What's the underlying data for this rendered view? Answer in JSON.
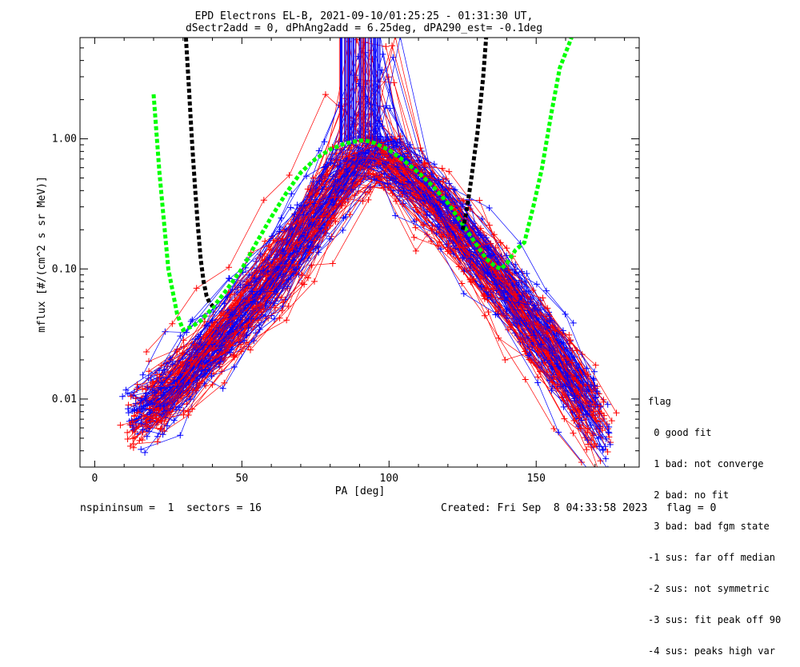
{
  "chart_data": {
    "type": "line",
    "title": "EPD Electrons EL-B, 2021-09-10/01:25:25 - 01:31:30 UT,",
    "subtitle": "dSectr2add = 0, dPhAng2add = 6.25deg, dPA290_est=  -0.1deg",
    "xlabel": "PA [deg]",
    "ylabel": "mflux [#/(cm^2 s sr MeV)]",
    "xlim": [
      -5,
      185
    ],
    "ylim": [
      0.003,
      6
    ],
    "yscale": "log",
    "x_ticks": [
      "0",
      "50",
      "100",
      "150"
    ],
    "x_tick_values": [
      0,
      50,
      100,
      150
    ],
    "y_ticks": [
      "1.00",
      "0.10",
      "0.01"
    ],
    "y_tick_values": [
      1.0,
      0.1,
      0.01
    ],
    "grid": false,
    "data_series": [
      {
        "color": "#0000ff",
        "role": "measured spectra"
      },
      {
        "color": "#ff0000",
        "role": "measured spectra"
      }
    ],
    "fit_series": [
      {
        "color": "#00ff00",
        "style": "dashed",
        "x": [
          20,
          22,
          25,
          28,
          30,
          33,
          36,
          40,
          45,
          50,
          55,
          60,
          65,
          70,
          75,
          80,
          85,
          90,
          92,
          95,
          100,
          105,
          110,
          115,
          120,
          125,
          130,
          133,
          136,
          138,
          140,
          143,
          146,
          149,
          152,
          155,
          158,
          162
        ],
        "y": [
          2.2,
          0.55,
          0.1,
          0.045,
          0.034,
          0.036,
          0.04,
          0.05,
          0.07,
          0.1,
          0.16,
          0.25,
          0.38,
          0.55,
          0.7,
          0.83,
          0.92,
          0.97,
          0.97,
          0.93,
          0.82,
          0.68,
          0.55,
          0.43,
          0.32,
          0.22,
          0.15,
          0.12,
          0.105,
          0.1,
          0.11,
          0.14,
          0.16,
          0.3,
          0.6,
          1.5,
          3.5,
          6
        ]
      },
      {
        "color": "#000000",
        "style": "dashed",
        "x": [
          31,
          32,
          33,
          34,
          35,
          36,
          37,
          38,
          39,
          40
        ],
        "y": [
          6,
          2.5,
          1,
          0.45,
          0.22,
          0.12,
          0.08,
          0.062,
          0.055,
          0.052
        ]
      },
      {
        "color": "#000000",
        "style": "dashed",
        "x": [
          125,
          126,
          127,
          128,
          129,
          130,
          131,
          132,
          133
        ],
        "y": [
          0.2,
          0.25,
          0.35,
          0.5,
          0.75,
          1.1,
          1.8,
          3,
          6
        ]
      }
    ]
  },
  "legend": {
    "title": "flag",
    "items": [
      " 0 good fit",
      " 1 bad: not converge",
      " 2 bad: no fit",
      " 3 bad: bad fgm state",
      "-1 sus: far off median",
      "-2 sus: not symmetric",
      "-3 sus: fit peak off 90",
      "-4 sus: peaks high var"
    ]
  },
  "footer": {
    "left": "nspininsum =  1  sectors = 16",
    "right": "Created: Fri Sep  8 04:33:58 2023   flag = 0"
  }
}
